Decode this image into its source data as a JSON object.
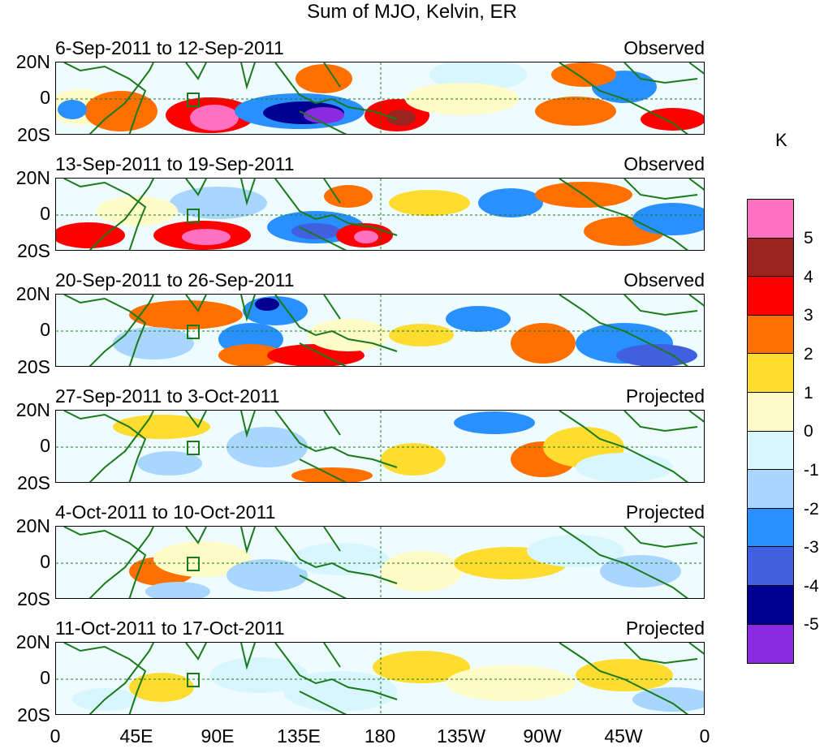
{
  "figure": {
    "title": "Sum of MJO, Kelvin, ER",
    "colorbar_unit": "K",
    "colorbar_levels": [
      "5",
      "4",
      "3",
      "2",
      "1",
      "0",
      "-1",
      "-2",
      "-3",
      "-4",
      "-5"
    ],
    "colorbar_colors": [
      "#ff70c0",
      "#9c2420",
      "#ff0000",
      "#ff7000",
      "#ffdc30",
      "#fffcc8",
      "#d8f6ff",
      "#a8d6ff",
      "#2890ff",
      "#4060e0",
      "#000090",
      "#8a2be2"
    ],
    "lat_labels": [
      "20N",
      "0",
      "20S"
    ],
    "lon_labels": [
      "0",
      "45E",
      "90E",
      "135E",
      "180",
      "135W",
      "90W",
      "45W",
      "0"
    ],
    "coast_color": "#1a7a1a"
  },
  "panels": [
    {
      "dates": "6-Sep-2011 to 12-Sep-2011",
      "status": "Observed"
    },
    {
      "dates": "13-Sep-2011 to 19-Sep-2011",
      "status": "Observed"
    },
    {
      "dates": "20-Sep-2011 to 26-Sep-2011",
      "status": "Observed"
    },
    {
      "dates": "27-Sep-2011 to 3-Oct-2011",
      "status": "Projected"
    },
    {
      "dates": "4-Oct-2011 to 10-Oct-2011",
      "status": "Projected"
    },
    {
      "dates": "11-Oct-2011 to 17-Oct-2011",
      "status": "Projected"
    }
  ]
}
